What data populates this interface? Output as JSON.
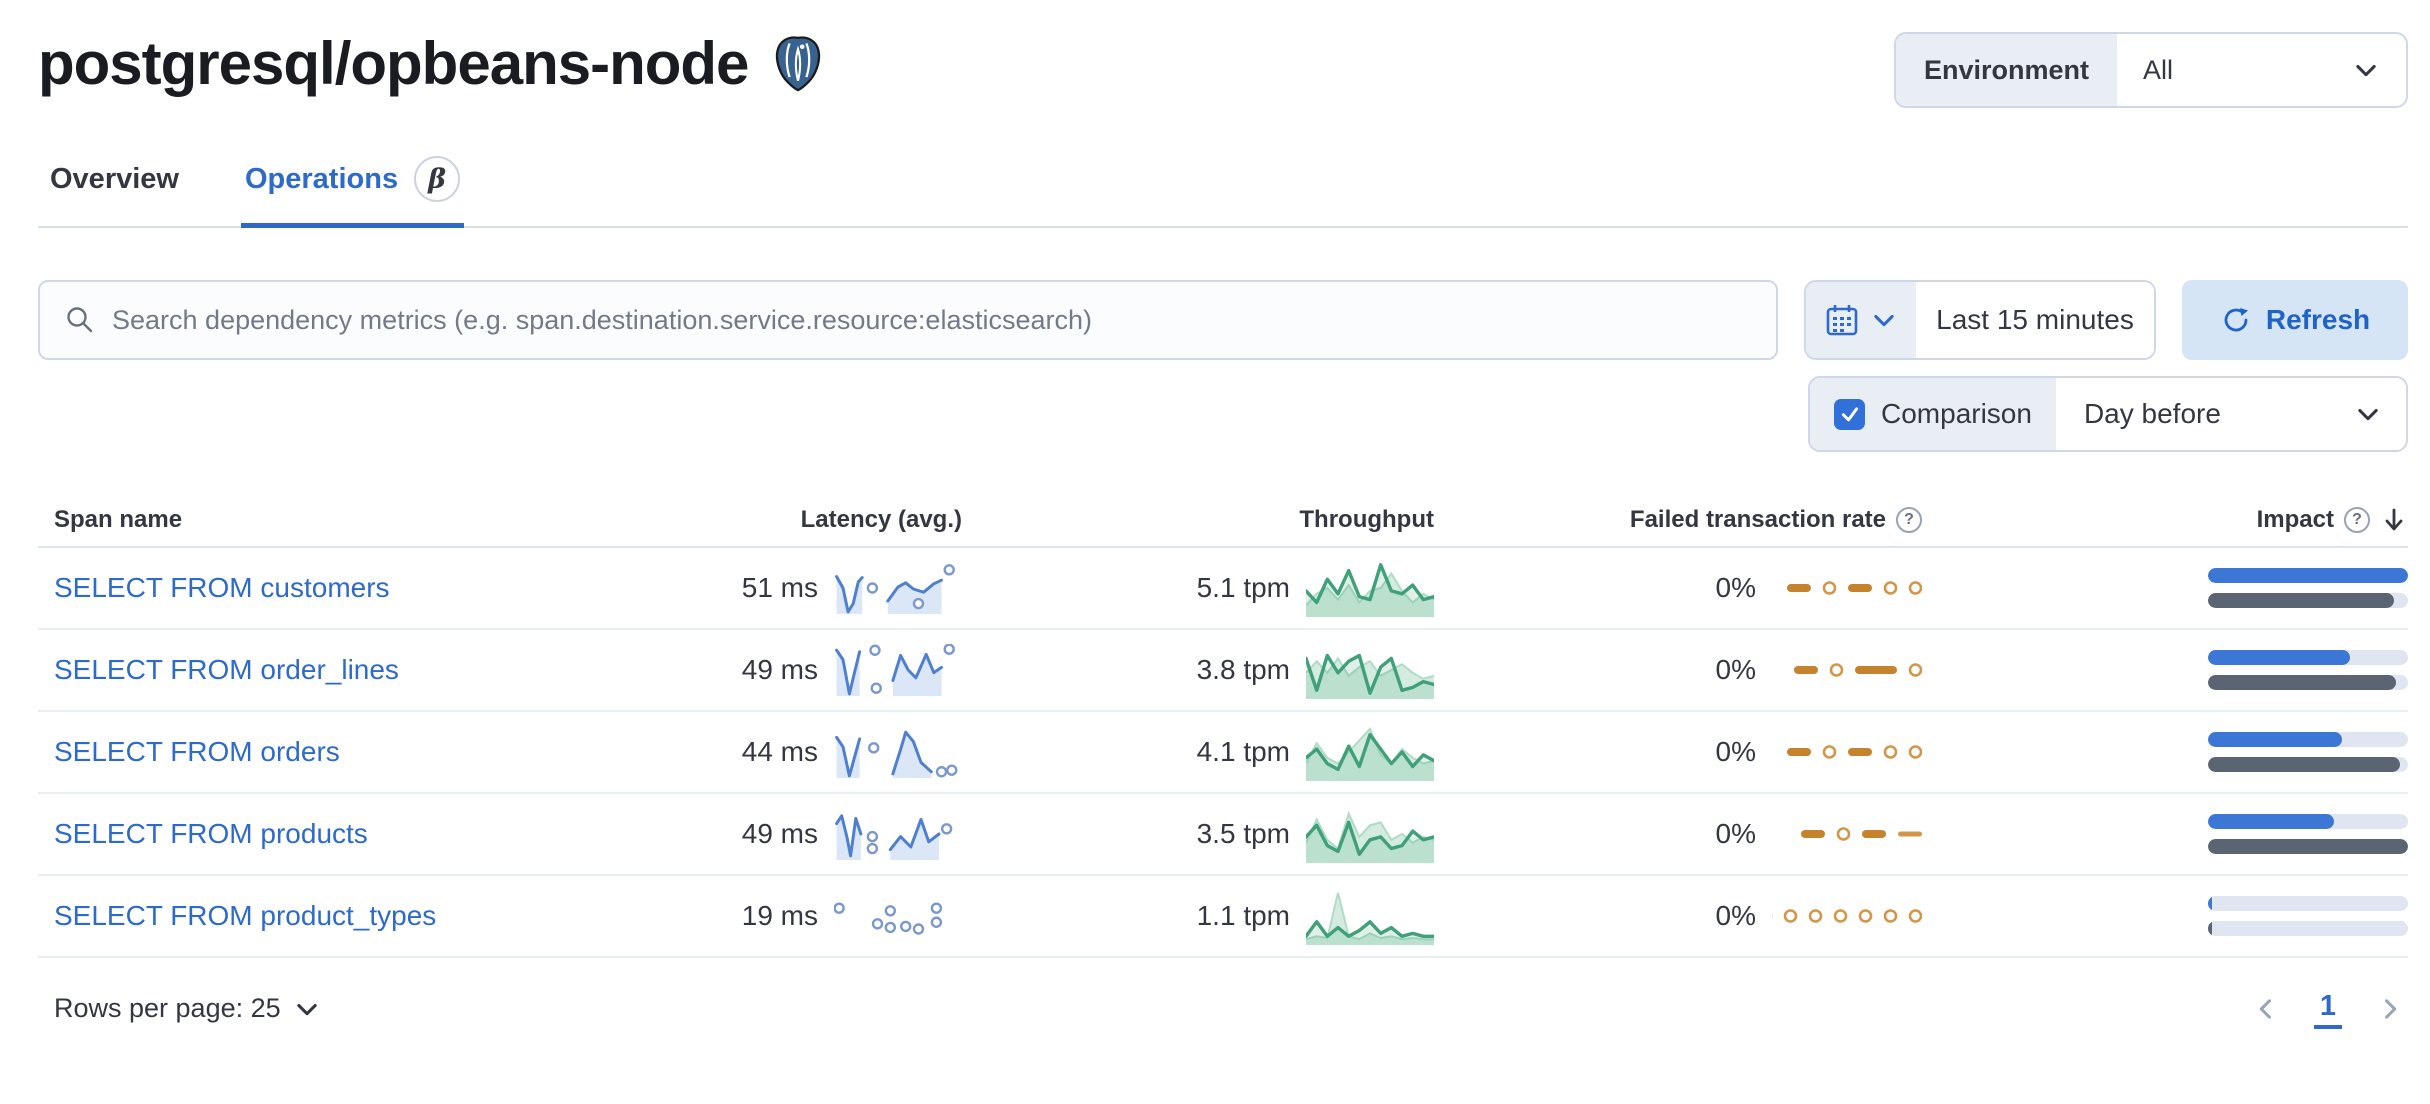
{
  "header": {
    "title": "postgresql/opbeans-node",
    "environment_label": "Environment",
    "environment_value": "All"
  },
  "tabs": [
    {
      "label": "Overview",
      "active": false
    },
    {
      "label": "Operations",
      "active": true,
      "beta_glyph": "β"
    }
  ],
  "toolbar": {
    "search_placeholder": "Search dependency metrics (e.g. span.destination.service.resource:elasticsearch)",
    "time_range": "Last 15 minutes",
    "refresh_label": "Refresh",
    "comparison_label": "Comparison",
    "comparison_checked": true,
    "comparison_value": "Day before"
  },
  "icons": {
    "help_glyph": "?"
  },
  "table": {
    "columns": [
      "Span name",
      "Latency (avg.)",
      "Throughput",
      "Failed transaction rate",
      "Impact"
    ],
    "rows": [
      {
        "span_name": "SELECT FROM customers",
        "latency": "51 ms",
        "throughput": "5.1 tpm",
        "failed_rate": "0%",
        "impact": {
          "current": 100,
          "previous": 93
        },
        "latency_spark": {
          "segments": [
            [
              [
                0.02,
                0.28
              ],
              [
                0.07,
                0.5
              ],
              [
                0.11,
                0.96
              ],
              [
                0.15,
                0.8
              ],
              [
                0.19,
                0.38
              ],
              [
                0.22,
                0.3
              ]
            ],
            [
              [
                0.42,
                0.75
              ],
              [
                0.5,
                0.48
              ],
              [
                0.56,
                0.4
              ],
              [
                0.62,
                0.52
              ],
              [
                0.7,
                0.58
              ],
              [
                0.78,
                0.42
              ],
              [
                0.84,
                0.35
              ]
            ]
          ],
          "dots": [
            [
              0.3,
              0.5
            ],
            [
              0.66,
              0.8
            ],
            [
              0.9,
              0.15
            ]
          ]
        },
        "throughput_spark": {
          "current": [
            0.55,
            0.75,
            0.35,
            0.6,
            0.2,
            0.65,
            0.7,
            0.1,
            0.55,
            0.6,
            0.45,
            0.7,
            0.65
          ],
          "comparison": [
            0.8,
            0.6,
            0.5,
            0.7,
            0.45,
            0.75,
            0.55,
            0.5,
            0.25,
            0.55,
            0.75,
            0.6,
            0.7
          ]
        },
        "failed_spark": [
          "dash",
          "circle",
          "dash",
          "circle",
          "circle"
        ]
      },
      {
        "span_name": "SELECT FROM order_lines",
        "latency": "49 ms",
        "throughput": "3.8 tpm",
        "failed_rate": "0%",
        "impact": {
          "current": 71,
          "previous": 94
        },
        "latency_spark": {
          "segments": [
            [
              [
                0.02,
                0.12
              ],
              [
                0.07,
                0.3
              ],
              [
                0.12,
                0.96
              ],
              [
                0.16,
                0.55
              ],
              [
                0.2,
                0.15
              ]
            ],
            [
              [
                0.46,
                0.7
              ],
              [
                0.52,
                0.22
              ],
              [
                0.58,
                0.5
              ],
              [
                0.64,
                0.65
              ],
              [
                0.72,
                0.2
              ],
              [
                0.78,
                0.55
              ],
              [
                0.84,
                0.45
              ]
            ]
          ],
          "dots": [
            [
              0.32,
              0.12
            ],
            [
              0.33,
              0.85
            ],
            [
              0.9,
              0.1
            ]
          ]
        },
        "throughput_spark": {
          "current": [
            0.3,
            0.85,
            0.25,
            0.55,
            0.35,
            0.25,
            0.9,
            0.45,
            0.3,
            0.85,
            0.8,
            0.7,
            0.75
          ],
          "comparison": [
            0.55,
            0.35,
            0.55,
            0.3,
            0.6,
            0.45,
            0.35,
            0.6,
            0.5,
            0.4,
            0.55,
            0.65,
            0.6
          ]
        },
        "failed_spark": [
          "dash",
          "circle",
          "dash-long",
          "circle"
        ]
      },
      {
        "span_name": "SELECT FROM orders",
        "latency": "44 ms",
        "throughput": "4.1 tpm",
        "failed_rate": "0%",
        "impact": {
          "current": 67,
          "previous": 96
        },
        "latency_spark": {
          "segments": [
            [
              [
                0.02,
                0.22
              ],
              [
                0.07,
                0.4
              ],
              [
                0.12,
                0.96
              ],
              [
                0.16,
                0.6
              ],
              [
                0.2,
                0.25
              ]
            ],
            [
              [
                0.46,
                0.92
              ],
              [
                0.52,
                0.45
              ],
              [
                0.56,
                0.12
              ],
              [
                0.62,
                0.3
              ],
              [
                0.68,
                0.7
              ],
              [
                0.76,
                0.88
              ]
            ]
          ],
          "dots": [
            [
              0.31,
              0.42
            ],
            [
              0.84,
              0.88
            ],
            [
              0.92,
              0.85
            ]
          ]
        },
        "throughput_spark": {
          "current": [
            0.6,
            0.45,
            0.7,
            0.8,
            0.4,
            0.75,
            0.2,
            0.45,
            0.7,
            0.5,
            0.75,
            0.55,
            0.65
          ],
          "comparison": [
            0.7,
            0.35,
            0.6,
            0.7,
            0.5,
            0.3,
            0.1,
            0.55,
            0.7,
            0.45,
            0.6,
            0.7,
            0.65
          ]
        },
        "failed_spark": [
          "dash",
          "circle",
          "dash",
          "circle",
          "circle"
        ]
      },
      {
        "span_name": "SELECT FROM products",
        "latency": "49 ms",
        "throughput": "3.5 tpm",
        "failed_rate": "0%",
        "impact": {
          "current": 63,
          "previous": 100
        },
        "latency_spark": {
          "segments": [
            [
              [
                0.02,
                0.3
              ],
              [
                0.06,
                0.15
              ],
              [
                0.1,
                0.55
              ],
              [
                0.13,
                0.92
              ],
              [
                0.17,
                0.2
              ],
              [
                0.21,
                0.5
              ]
            ],
            [
              [
                0.44,
                0.8
              ],
              [
                0.52,
                0.55
              ],
              [
                0.6,
                0.75
              ],
              [
                0.68,
                0.22
              ],
              [
                0.74,
                0.65
              ],
              [
                0.82,
                0.5
              ]
            ]
          ],
          "dots": [
            [
              0.3,
              0.55
            ],
            [
              0.3,
              0.78
            ],
            [
              0.88,
              0.4
            ]
          ]
        },
        "throughput_spark": {
          "current": [
            0.55,
            0.35,
            0.7,
            0.8,
            0.3,
            0.85,
            0.6,
            0.55,
            0.75,
            0.7,
            0.45,
            0.6,
            0.55
          ],
          "comparison": [
            0.65,
            0.25,
            0.6,
            0.75,
            0.15,
            0.55,
            0.35,
            0.3,
            0.6,
            0.5,
            0.65,
            0.55,
            0.6
          ]
        },
        "failed_spark": [
          "dash",
          "circle",
          "dash",
          "dash-short"
        ]
      },
      {
        "span_name": "SELECT FROM product_types",
        "latency": "19 ms",
        "throughput": "1.1 tpm",
        "failed_rate": "0%",
        "impact": {
          "current": 2,
          "previous": 2
        },
        "latency_spark": {
          "segments": [],
          "dots": [
            [
              0.04,
              0.35
            ],
            [
              0.34,
              0.65
            ],
            [
              0.44,
              0.4
            ],
            [
              0.44,
              0.72
            ],
            [
              0.56,
              0.7
            ],
            [
              0.66,
              0.75
            ],
            [
              0.8,
              0.35
            ],
            [
              0.8,
              0.62
            ]
          ]
        },
        "throughput_spark": {
          "current": [
            0.85,
            0.6,
            0.85,
            0.7,
            0.85,
            0.75,
            0.6,
            0.8,
            0.7,
            0.85,
            0.8,
            0.85,
            0.85
          ],
          "comparison": [
            0.9,
            0.85,
            0.88,
            0.1,
            0.85,
            0.9,
            0.8,
            0.88,
            0.85,
            0.9,
            0.88,
            0.9,
            0.9
          ]
        },
        "failed_spark": [
          "circle",
          "circle",
          "circle",
          "circle",
          "circle",
          "circle",
          "circle"
        ]
      }
    ]
  },
  "footer": {
    "rows_per_page": "Rows per page: 25",
    "page": "1"
  },
  "colors": {
    "primary": "#2d6ac9",
    "link": "#2d6ac9",
    "impact_current": "#3d77d6",
    "impact_previous": "#5b6472",
    "throughput_green": "#3fa079",
    "failed_orange": "#c6832d",
    "refresh_bg": "#d6e5f6",
    "panel_gray": "#e9edf4"
  }
}
